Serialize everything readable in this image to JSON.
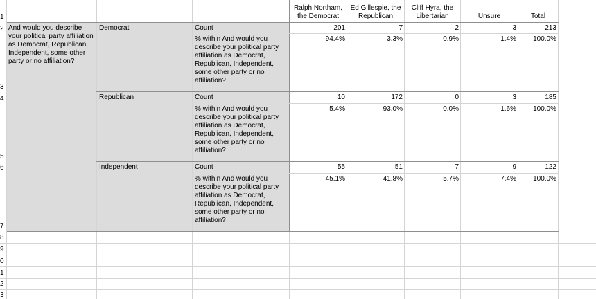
{
  "row_numbers": [
    "1",
    "2",
    "3",
    "4",
    "5",
    "6",
    "7",
    "8",
    "9",
    "0",
    "1",
    "2",
    "3"
  ],
  "columns": [
    "Ralph Northam, the Democrat",
    "Ed Gillespie, the Republican",
    "Cliff Hyra, the Libertarian",
    "Unsure",
    "Total"
  ],
  "question_label": "And would you describe your political party affiliation as Democrat, Republican, Independent, some other party or no affiliation?",
  "groups": [
    {
      "name": "Democrat",
      "count_label": "Count",
      "pct_label": "% within And would you describe your political party affiliation as Democrat, Republican, Independent, some other party or no affiliation?",
      "counts": [
        "201",
        "7",
        "2",
        "3",
        "213"
      ],
      "pcts": [
        "94.4%",
        "3.3%",
        "0.9%",
        "1.4%",
        "100.0%"
      ]
    },
    {
      "name": "Republican",
      "count_label": "Count",
      "pct_label": "% within And would you describe your political party affiliation as Democrat, Republican, Independent, some other party or no affiliation?",
      "counts": [
        "10",
        "172",
        "0",
        "3",
        "185"
      ],
      "pcts": [
        "5.4%",
        "93.0%",
        "0.0%",
        "1.6%",
        "100.0%"
      ]
    },
    {
      "name": "Independent",
      "count_label": "Count",
      "pct_label": "% within And would you describe your political party affiliation as Democrat, Republican, Independent, some other party or no affiliation?",
      "counts": [
        "55",
        "51",
        "7",
        "9",
        "122"
      ],
      "pcts": [
        "45.1%",
        "41.8%",
        "5.7%",
        "7.4%",
        "100.0%"
      ]
    }
  ]
}
